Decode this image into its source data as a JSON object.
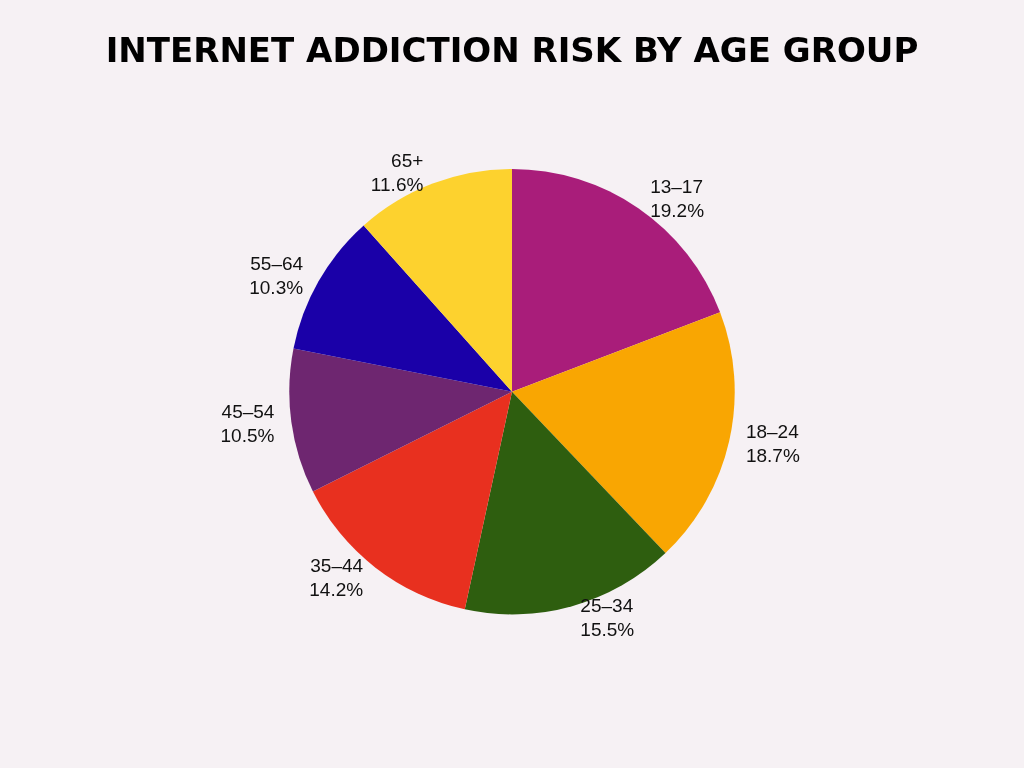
{
  "chart_data": {
    "type": "pie",
    "title": "INTERNET ADDICTION RISK BY AGE GROUP",
    "categories": [
      "13–17",
      "18–24",
      "25–34",
      "35–44",
      "45–54",
      "55–64",
      "65+"
    ],
    "values": [
      19.2,
      18.7,
      15.5,
      14.2,
      10.5,
      10.3,
      11.6
    ],
    "value_labels": [
      "19.2%",
      "18.7%",
      "15.5%",
      "14.2%",
      "10.5%",
      "10.3%",
      "11.6%"
    ],
    "colors": [
      "#a91d7a",
      "#f9a602",
      "#2e5e0f",
      "#e8301f",
      "#6e2670",
      "#1a00a8",
      "#fdd22e"
    ],
    "legend": false
  }
}
